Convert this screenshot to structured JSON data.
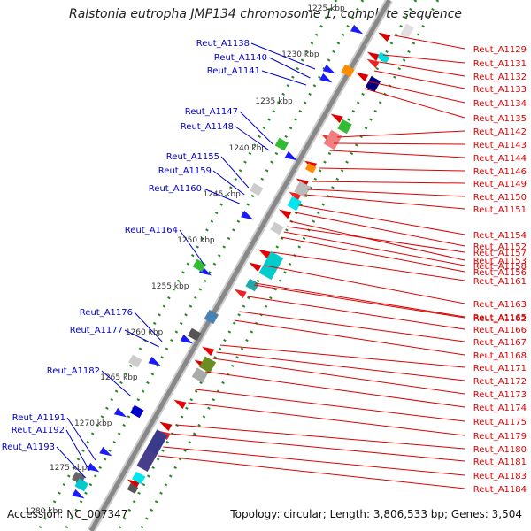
{
  "title": "Ralstonia eutropha JMP134 chromosome 1, complete sequence",
  "footer": {
    "accession": "Accession: NC_007347",
    "summary": "Topology: circular; Length: 3,806,533 bp; Genes: 3,504"
  },
  "kbp_ticks": [
    "1225 kbp",
    "1230 kbp",
    "1235 kbp",
    "1240 kbp",
    "1245 kbp",
    "1250 kbp",
    "1255 kbp",
    "1260 kbp",
    "1265 kbp",
    "1270 kbp",
    "1275 kbp",
    "1280 kbp"
  ],
  "colors": {
    "left_label": "#0000cc",
    "right_label": "#dd0000",
    "tick": "#228822",
    "backbone": "#888888",
    "gene_forward": "#1a1aff",
    "gene_reverse": "#ee0000"
  },
  "left_labels": [
    "Reut_A1138",
    "Reut_A1140",
    "Reut_A1141",
    "Reut_A1147",
    "Reut_A1148",
    "Reut_A1155",
    "Reut_A1159",
    "Reut_A1160",
    "Reut_A1164",
    "Reut_A1176",
    "Reut_A1177",
    "Reut_A1182",
    "Reut_A1191",
    "Reut_A1192",
    "Reut_A1193"
  ],
  "right_labels": [
    "Reut_A1129",
    "Reut_A1131",
    "Reut_A1132",
    "Reut_A1133",
    "Reut_A1134",
    "Reut_A1135",
    "Reut_A1142",
    "Reut_A1143",
    "Reut_A1144",
    "Reut_A1146",
    "Reut_A1149",
    "Reut_A1150",
    "Reut_A1151",
    "Reut_A1154",
    "Reut_A1152",
    "Reut_A1153",
    "Reut_A1157",
    "Reut_A1158",
    "Reut_A1156",
    "Reut_A1161",
    "Reut_A1163",
    "Reut_A1165",
    "Reut_A1162",
    "Reut_A1166",
    "Reut_A1167",
    "Reut_A1168",
    "Reut_A1171",
    "Reut_A1172",
    "Reut_A1173",
    "Reut_A1174",
    "Reut_A1175",
    "Reut_A1179",
    "Reut_A1180",
    "Reut_A1181",
    "Reut_A1183",
    "Reut_A1184"
  ]
}
